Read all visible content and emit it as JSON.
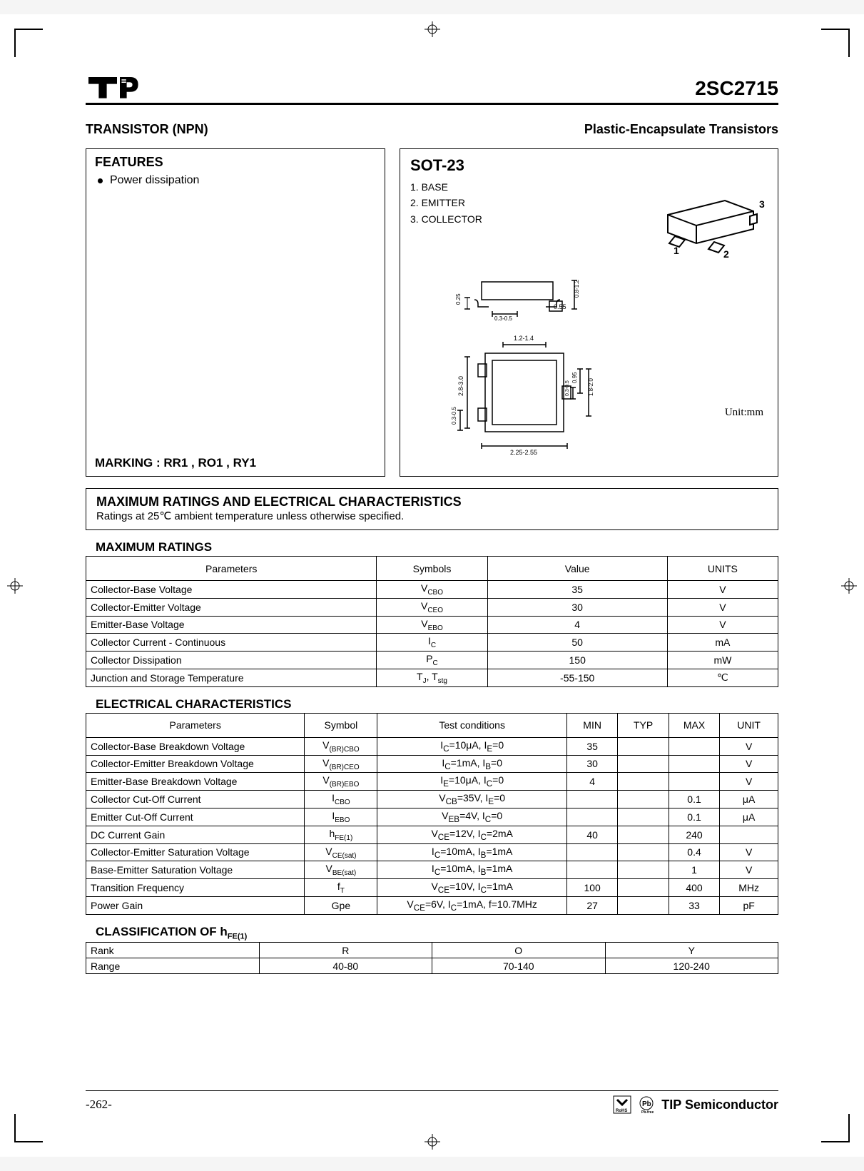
{
  "header": {
    "part_number": "2SC2715"
  },
  "titles": {
    "left": "TRANSISTOR (NPN)",
    "right": "Plastic-Encapsulate Transistors"
  },
  "features": {
    "heading": "FEATURES",
    "bullet": "Power dissipation",
    "marking": "MARKING : RR1 , RO1 , RY1"
  },
  "package": {
    "name": "SOT-23",
    "pins": [
      "1.  BASE",
      "2.  EMITTER",
      "3.  COLLECTOR"
    ],
    "unit_label": "Unit:mm",
    "iso_labels": {
      "p1": "1",
      "p2": "2",
      "p3": "3"
    },
    "dims": {
      "side_height": "0.25",
      "lead_width": "0.3-0.5",
      "lead_thick": "0.55",
      "body_h": "0.8-1.2",
      "top_width": "1.2-1.4",
      "body_len": "2.8-3.0",
      "lead_prot": "0.3-0.5",
      "pitch_half": "0.95",
      "lead_w2": "0.3-0.5",
      "pitch": "1.8-2.0",
      "overall": "2.25-2.55"
    }
  },
  "ratings_section": {
    "title": "MAXIMUM RATINGS AND ELECTRICAL CHARACTERISTICS",
    "subtitle": "Ratings at 25℃  ambient temperature unless otherwise specified."
  },
  "max_ratings": {
    "title": "MAXIMUM RATINGS",
    "headers": [
      "Parameters",
      "Symbols",
      "Value",
      "UNITS"
    ],
    "rows": [
      {
        "param": "Collector-Base Voltage",
        "sym": "V",
        "sub": "CBO",
        "val": "35",
        "unit": "V"
      },
      {
        "param": "Collector-Emitter Voltage",
        "sym": "V",
        "sub": "CEO",
        "val": "30",
        "unit": "V"
      },
      {
        "param": "Emitter-Base Voltage",
        "sym": "V",
        "sub": "EBO",
        "val": "4",
        "unit": "V"
      },
      {
        "param": "Collector Current - Continuous",
        "sym": "I",
        "sub": "C",
        "val": "50",
        "unit": "mA"
      },
      {
        "param": "Collector Dissipation",
        "sym": "P",
        "sub": "C",
        "val": "150",
        "unit": "mW"
      },
      {
        "param": "Junction and Storage Temperature",
        "sym": "T",
        "sub": "J, Tstg",
        "val": "-55-150",
        "unit": "℃",
        "special": true
      }
    ]
  },
  "elec_char": {
    "title": "ELECTRICAL CHARACTERISTICS",
    "headers": [
      "Parameters",
      "Symbol",
      "Test conditions",
      "MIN",
      "TYP",
      "MAX",
      "UNIT"
    ],
    "rows": [
      {
        "param": "Collector-Base Breakdown Voltage",
        "sym": "V",
        "sub": "(BR)CBO",
        "cond_html": "I<sub>C</sub>=10μA, I<sub>E</sub>=0",
        "min": "35",
        "typ": "",
        "max": "",
        "unit": "V"
      },
      {
        "param": "Collector-Emitter Breakdown Voltage",
        "sym": "V",
        "sub": "(BR)CEO",
        "cond_html": "I<sub>C</sub>=1mA, I<sub>B</sub>=0",
        "min": "30",
        "typ": "",
        "max": "",
        "unit": "V"
      },
      {
        "param": "Emitter-Base Breakdown Voltage",
        "sym": "V",
        "sub": "(BR)EBO",
        "cond_html": "I<sub>E</sub>=10μA, I<sub>C</sub>=0",
        "min": "4",
        "typ": "",
        "max": "",
        "unit": "V"
      },
      {
        "param": "Collector Cut-Off Current",
        "sym": "I",
        "sub": "CBO",
        "cond_html": "V<sub>CB</sub>=35V, I<sub>E</sub>=0",
        "min": "",
        "typ": "",
        "max": "0.1",
        "unit": "μA"
      },
      {
        "param": "Emitter Cut-Off Current",
        "sym": "I",
        "sub": "EBO",
        "cond_html": "V<sub>EB</sub>=4V, I<sub>C</sub>=0",
        "min": "",
        "typ": "",
        "max": "0.1",
        "unit": "μA"
      },
      {
        "param": "DC Current Gain",
        "sym": "h",
        "sub": "FE(1)",
        "cond_html": "V<sub>CE</sub>=12V, I<sub>C</sub>=2mA",
        "min": "40",
        "typ": "",
        "max": "240",
        "unit": ""
      },
      {
        "param": "Collector-Emitter Saturation Voltage",
        "sym": "V",
        "sub": "CE(sat)",
        "cond_html": "I<sub>C</sub>=10mA, I<sub>B</sub>=1mA",
        "min": "",
        "typ": "",
        "max": "0.4",
        "unit": "V"
      },
      {
        "param": "Base-Emitter Saturation Voltage",
        "sym": "V",
        "sub": "BE(sat)",
        "cond_html": "I<sub>C</sub>=10mA, I<sub>B</sub>=1mA",
        "min": "",
        "typ": "",
        "max": "1",
        "unit": "V"
      },
      {
        "param": "Transition Frequency",
        "sym": "f",
        "sub": "T",
        "cond_html": "V<sub>CE</sub>=10V, I<sub>C</sub>=1mA",
        "min": "100",
        "typ": "",
        "max": "400",
        "unit": "MHz"
      },
      {
        "param": "Power Gain",
        "sym": "Gpe",
        "sub": "",
        "cond_html": "V<sub>CE</sub>=6V, I<sub>C</sub>=1mA, f=10.7MHz",
        "min": "27",
        "typ": "",
        "max": "33",
        "unit": "pF"
      }
    ]
  },
  "classification": {
    "title_html": "CLASSIFICATION OF h<sub style='font-size:11px'>FE(1)</sub>",
    "rows": [
      {
        "label": "Rank",
        "c1": "R",
        "c2": "O",
        "c3": "Y"
      },
      {
        "label": "Range",
        "c1": "40-80",
        "c2": "70-140",
        "c3": "120-240"
      }
    ]
  },
  "footer": {
    "page": "-262-",
    "company": "TIP Semiconductor"
  },
  "colors": {
    "border": "#000000",
    "text": "#000000",
    "bg": "#ffffff"
  }
}
